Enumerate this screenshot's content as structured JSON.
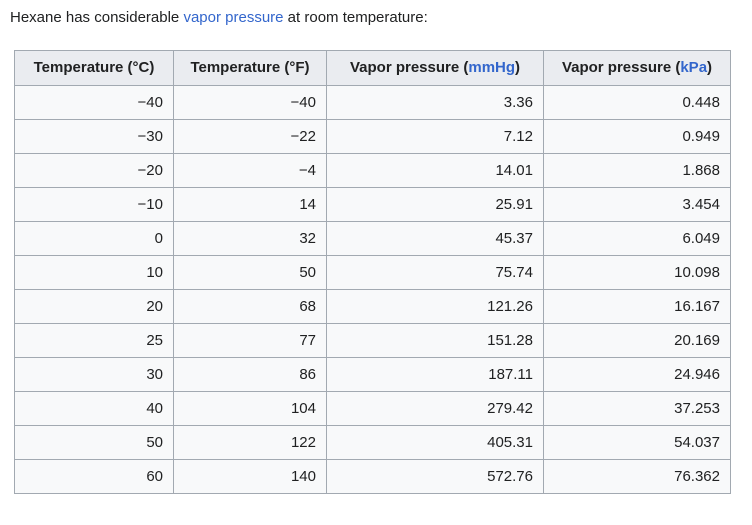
{
  "intro": {
    "before": "Hexane has considerable ",
    "link_text": "vapor pressure",
    "after": " at room temperature:"
  },
  "table": {
    "headers": [
      {
        "text": "Temperature (°C)"
      },
      {
        "text": "Temperature (°F)"
      },
      {
        "prefix": "Vapor pressure (",
        "link": "mmHg",
        "suffix": ")"
      },
      {
        "prefix": "Vapor pressure (",
        "link": "kPa",
        "suffix": ")"
      }
    ],
    "rows": [
      [
        "−40",
        "−40",
        "3.36",
        "0.448"
      ],
      [
        "−30",
        "−22",
        "7.12",
        "0.949"
      ],
      [
        "−20",
        "−4",
        "14.01",
        "1.868"
      ],
      [
        "−10",
        "14",
        "25.91",
        "3.454"
      ],
      [
        "0",
        "32",
        "45.37",
        "6.049"
      ],
      [
        "10",
        "50",
        "75.74",
        "10.098"
      ],
      [
        "20",
        "68",
        "121.26",
        "16.167"
      ],
      [
        "25",
        "77",
        "151.28",
        "20.169"
      ],
      [
        "30",
        "86",
        "187.11",
        "24.946"
      ],
      [
        "40",
        "104",
        "279.42",
        "37.253"
      ],
      [
        "50",
        "122",
        "405.31",
        "54.037"
      ],
      [
        "60",
        "140",
        "572.76",
        "76.362"
      ]
    ]
  },
  "colors": {
    "link": "#3366cc",
    "header_bg": "#eaecf0",
    "cell_bg": "#f8f9fa",
    "border": "#a2a9b1",
    "text": "#202122"
  }
}
